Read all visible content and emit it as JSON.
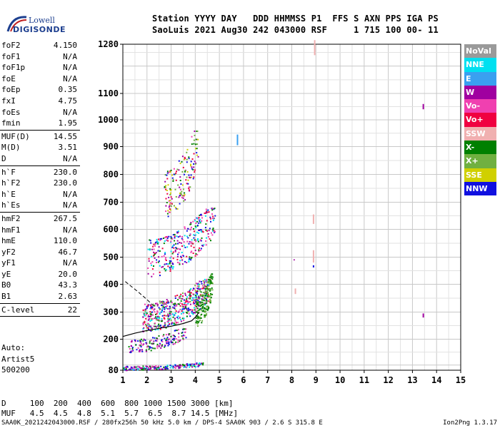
{
  "logo": {
    "line1": "Lowell",
    "line2": "DIGISONDE"
  },
  "header": {
    "line1": "Station YYYY DAY   DDD HHMMSS P1  FFS S AXN PPS IGA PS",
    "line2": "SaoLuis 2021 Aug30 242 043000 RSF     1 715 100 00- 11"
  },
  "params": [
    {
      "label": "foF2",
      "value": "4.150"
    },
    {
      "label": "foF1",
      "value": "N/A"
    },
    {
      "label": "foF1p",
      "value": "N/A"
    },
    {
      "label": "foE",
      "value": "N/A"
    },
    {
      "label": "foEp",
      "value": "0.35"
    },
    {
      "label": "fxI",
      "value": "4.75"
    },
    {
      "label": "foEs",
      "value": "N/A"
    },
    {
      "label": "fmin",
      "value": "1.95"
    },
    {
      "label": "MUF(D)",
      "value": "14.55",
      "sep": true
    },
    {
      "label": "M(D)",
      "value": "3.51"
    },
    {
      "label": "D",
      "value": "N/A"
    },
    {
      "label": "h`F",
      "value": "230.0",
      "sep": true
    },
    {
      "label": "h`F2",
      "value": "230.0"
    },
    {
      "label": "h`E",
      "value": "N/A"
    },
    {
      "label": "h`Es",
      "value": "N/A"
    },
    {
      "label": "hmF2",
      "value": "267.5",
      "sep": true
    },
    {
      "label": "hmF1",
      "value": "N/A"
    },
    {
      "label": "hmE",
      "value": "110.0"
    },
    {
      "label": "yF2",
      "value": "46.7"
    },
    {
      "label": "yF1",
      "value": "N/A"
    },
    {
      "label": "yE",
      "value": "20.0"
    },
    {
      "label": "B0",
      "value": "43.3"
    },
    {
      "label": "B1",
      "value": "2.63"
    },
    {
      "label": "C-level",
      "value": "22",
      "sep": true
    }
  ],
  "auto": {
    "line1": "Auto:",
    "line2": "Artist5",
    "line3": "500200"
  },
  "legend": [
    {
      "label": "NoVal",
      "color": "#9a9a9a"
    },
    {
      "label": "NNE",
      "color": "#00e0f0"
    },
    {
      "label": "E",
      "color": "#3aa0f0"
    },
    {
      "label": "W",
      "color": "#a000a0"
    },
    {
      "label": "Vo-",
      "color": "#f040b0"
    },
    {
      "label": "Vo+",
      "color": "#f00040"
    },
    {
      "label": "SSW",
      "color": "#f0b0b0"
    },
    {
      "label": "X-",
      "color": "#008000"
    },
    {
      "label": "X+",
      "color": "#70b040"
    },
    {
      "label": "SSE",
      "color": "#d0d000"
    },
    {
      "label": "NNW",
      "color": "#1010e0"
    }
  ],
  "muf_table": {
    "line1": "D     100  200  400  600  800 1000 1500 3000 [km]",
    "line2": "MUF   4.5  4.5  4.8  5.1  5.7  6.5  8.7 14.5 [MHz]"
  },
  "footer": {
    "left": "SAA0K_2021242043000.RSF / 280fx256h 50 kHz 5.0 km / DPS-4 SAA0K 903 / 2.6 S 315.8 E",
    "right": "Ion2Png 1.3.17"
  },
  "chart_data": {
    "type": "scatter",
    "title": "",
    "xlabel": "",
    "ylabel": "",
    "xlim": [
      1,
      15
    ],
    "ylim": [
      80,
      1280
    ],
    "xticks": [
      "1",
      "2",
      "3",
      "4",
      "5",
      "6",
      "7",
      "8",
      "9",
      "10",
      "11",
      "12",
      "13",
      "14",
      "15"
    ],
    "yticks": [
      {
        "v": 1280,
        "t": "1280"
      },
      {
        "v": 1100,
        "t": "1100"
      },
      {
        "v": 1000,
        "t": "1000"
      },
      {
        "v": 900,
        "t": "900"
      },
      {
        "v": 800,
        "t": "800"
      },
      {
        "v": 700,
        "t": "700"
      },
      {
        "v": 600,
        "t": "600"
      },
      {
        "v": 500,
        "t": "500"
      },
      {
        "v": 400,
        "t": "400"
      },
      {
        "v": 300,
        "t": "300"
      },
      {
        "v": 200,
        "t": "200"
      },
      {
        "v": 80,
        "t": "80"
      }
    ],
    "grid": true,
    "legend_position": "right",
    "clusters": [
      {
        "name": "F2 trace low",
        "x": [
          1.8,
          4.6
        ],
        "y": [
          230,
          420
        ],
        "n": 520,
        "colors": [
          "#1010e0",
          "#a000a0",
          "#f00040",
          "#f040b0",
          "#008000",
          "#70b040",
          "#00e0f0"
        ]
      },
      {
        "name": "F2 green edge",
        "x": [
          4.0,
          4.7
        ],
        "y": [
          250,
          440
        ],
        "n": 160,
        "colors": [
          "#008000",
          "#70b040"
        ]
      },
      {
        "name": "2F2 echo",
        "x": [
          2.0,
          4.8
        ],
        "y": [
          430,
          680
        ],
        "n": 320,
        "colors": [
          "#1010e0",
          "#a000a0",
          "#f00040",
          "#f040b0",
          "#008000",
          "#00e0f0"
        ]
      },
      {
        "name": "3F2 echo",
        "x": [
          2.7,
          4.1
        ],
        "y": [
          640,
          960
        ],
        "n": 160,
        "colors": [
          "#1010e0",
          "#a000a0",
          "#f00040",
          "#f040b0",
          "#008000",
          "#70b040",
          "#d0d000"
        ]
      },
      {
        "name": "low band",
        "x": [
          1.2,
          3.6
        ],
        "y": [
          150,
          240
        ],
        "n": 160,
        "colors": [
          "#1010e0",
          "#a000a0",
          "#f040b0",
          "#008000"
        ]
      },
      {
        "name": "bottom band",
        "x": [
          1.0,
          4.3
        ],
        "y": [
          82,
          110
        ],
        "n": 180,
        "colors": [
          "#1010e0",
          "#00e0f0",
          "#a000a0",
          "#f040b0",
          "#008000"
        ]
      }
    ],
    "vertical_marks": [
      {
        "x": 5.75,
        "y0": 905,
        "y1": 945,
        "color": "#3aa0f0"
      },
      {
        "x": 8.95,
        "y0": 1240,
        "y1": 1295,
        "color": "#f0b0b0"
      },
      {
        "x": 8.9,
        "y0": 480,
        "y1": 525,
        "color": "#f0b0b0"
      },
      {
        "x": 8.9,
        "y0": 620,
        "y1": 655,
        "color": "#f0b0b0"
      },
      {
        "x": 8.15,
        "y0": 365,
        "y1": 385,
        "color": "#f0b0b0"
      },
      {
        "x": 13.45,
        "y0": 1040,
        "y1": 1060,
        "color": "#a000a0"
      },
      {
        "x": 13.45,
        "y0": 280,
        "y1": 295,
        "color": "#a000a0"
      },
      {
        "x": 8.1,
        "y0": 488,
        "y1": 492,
        "color": "#a000a0"
      },
      {
        "x": 8.9,
        "y0": 462,
        "y1": 470,
        "color": "#1010e0"
      }
    ],
    "profile_curve": {
      "x": [
        1.0,
        1.5,
        2.0,
        2.5,
        3.0,
        3.5,
        3.85,
        4.05,
        4.15
      ],
      "y": [
        210,
        222,
        232,
        240,
        248,
        258,
        268,
        285,
        300
      ]
    },
    "dashed_curve": {
      "x": [
        1.1,
        1.6,
        2.0,
        2.3
      ],
      "y": [
        410,
        375,
        345,
        320
      ]
    }
  }
}
